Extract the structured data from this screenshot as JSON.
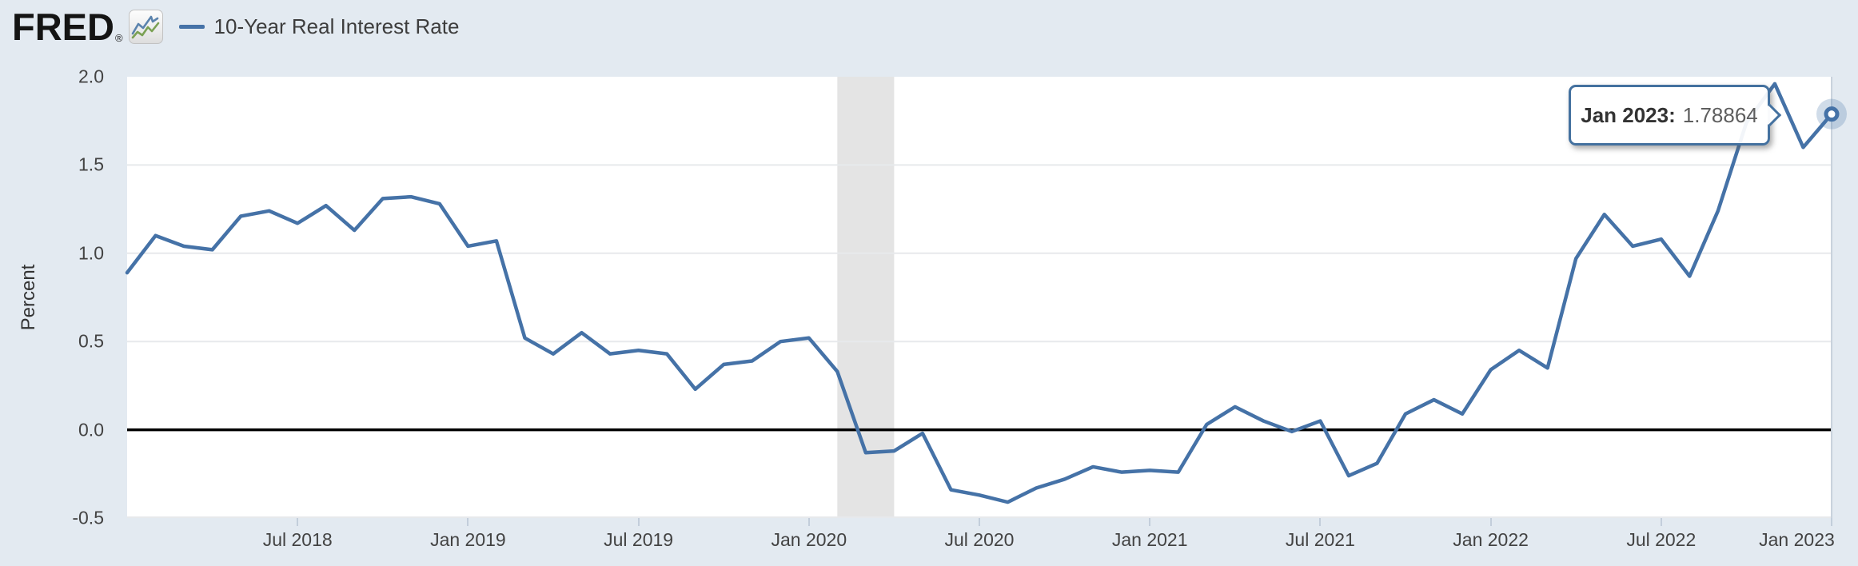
{
  "header": {
    "brand": "FRED",
    "registered_mark": "®",
    "legend": {
      "series_label": "10-Year Real Interest Rate",
      "swatch_color": "#4572a7"
    }
  },
  "tooltip": {
    "date_label": "Jan 2023:",
    "value": "1.78864"
  },
  "y_axis": {
    "title": "Percent",
    "ticks": [
      "2.0",
      "1.5",
      "1.0",
      "0.5",
      "0.0",
      "-0.5"
    ]
  },
  "x_axis": {
    "ticks": [
      "Jul 2018",
      "Jan 2019",
      "Jul 2019",
      "Jan 2020",
      "Jul 2020",
      "Jan 2021",
      "Jul 2021",
      "Jan 2022",
      "Jul 2022",
      "Jan 2023"
    ]
  },
  "chart_data": {
    "type": "line",
    "title": "10-Year Real Interest Rate",
    "series_name": "10-Year Real Interest Rate",
    "series_color": "#4572a7",
    "xlabel": "",
    "ylabel": "Percent",
    "ylim": [
      -0.5,
      2.0
    ],
    "y_ticks": [
      2.0,
      1.5,
      1.0,
      0.5,
      0.0,
      -0.5
    ],
    "grid": "horizontal",
    "legend_position": "top-left",
    "zero_line": 0.0,
    "recession_band": {
      "from": "2020-02",
      "to": "2020-04",
      "color": "#e4e4e4"
    },
    "highlighted_last_point": {
      "date": "Jan 2023",
      "value": 1.78864
    },
    "x": [
      "2018-01",
      "2018-02",
      "2018-03",
      "2018-04",
      "2018-05",
      "2018-06",
      "2018-07",
      "2018-08",
      "2018-09",
      "2018-10",
      "2018-11",
      "2018-12",
      "2019-01",
      "2019-02",
      "2019-03",
      "2019-04",
      "2019-05",
      "2019-06",
      "2019-07",
      "2019-08",
      "2019-09",
      "2019-10",
      "2019-11",
      "2019-12",
      "2020-01",
      "2020-02",
      "2020-03",
      "2020-04",
      "2020-05",
      "2020-06",
      "2020-07",
      "2020-08",
      "2020-09",
      "2020-10",
      "2020-11",
      "2020-12",
      "2021-01",
      "2021-02",
      "2021-03",
      "2021-04",
      "2021-05",
      "2021-06",
      "2021-07",
      "2021-08",
      "2021-09",
      "2021-10",
      "2021-11",
      "2021-12",
      "2022-01",
      "2022-02",
      "2022-03",
      "2022-04",
      "2022-05",
      "2022-06",
      "2022-07",
      "2022-08",
      "2022-09",
      "2022-10",
      "2022-11",
      "2022-12",
      "2023-01"
    ],
    "values": [
      0.89,
      1.1,
      1.04,
      1.02,
      1.21,
      1.24,
      1.17,
      1.27,
      1.13,
      1.31,
      1.32,
      1.28,
      1.04,
      1.07,
      0.52,
      0.43,
      0.55,
      0.43,
      0.45,
      0.43,
      0.23,
      0.37,
      0.39,
      0.5,
      0.52,
      0.33,
      -0.13,
      -0.12,
      -0.02,
      -0.34,
      -0.37,
      -0.41,
      -0.33,
      -0.28,
      -0.21,
      -0.24,
      -0.23,
      -0.24,
      0.03,
      0.13,
      0.05,
      -0.01,
      0.05,
      -0.26,
      -0.19,
      0.09,
      0.17,
      0.09,
      0.34,
      0.45,
      0.35,
      0.97,
      1.22,
      1.04,
      1.08,
      0.87,
      1.24,
      1.74,
      1.96,
      1.6,
      1.78864
    ]
  },
  "colors": {
    "background": "#e3eaf1",
    "plot_background": "#ffffff",
    "gridline": "#e7e9ec",
    "zero_line": "#000000",
    "recession_band": "#e4e4e4",
    "tooltip_border": "#44719f",
    "axis_text": "#434343"
  }
}
